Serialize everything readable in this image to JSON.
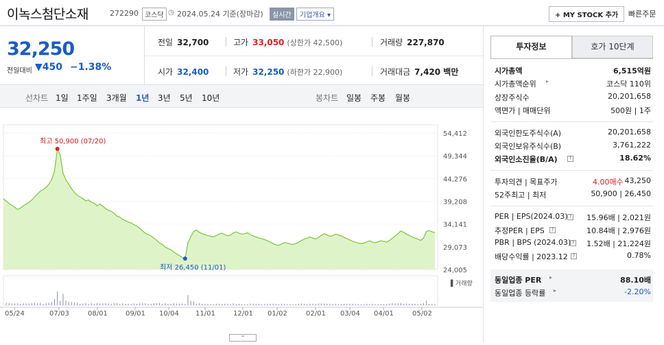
{
  "header": {
    "title": "이녹스첨단소재",
    "code": "272290",
    "market": "코스닥",
    "date": "2024.05.24 기준(장마감)",
    "realtime": "실시간",
    "corp_info": "기업개요 ▾",
    "my_stock": "+ MY STOCK 추가",
    "quick_order": "빠른주문"
  },
  "price": {
    "current": "32,250",
    "change_label": "전일대비",
    "change": "▼450",
    "change_pct": "−1.38%"
  },
  "quote": {
    "prev_label": "전일",
    "prev": "32,700",
    "high_label": "고가",
    "high": "33,050",
    "upper_limit": "(상한가 42,500)",
    "volume_label": "거래량",
    "volume": "227,870",
    "open_label": "시가",
    "open": "32,400",
    "low_label": "저가",
    "low": "32,250",
    "lower_limit": "(하한가 22,900)",
    "value_label": "거래대금",
    "value": "7,420 백만"
  },
  "tabs": {
    "line_chart": "선차트",
    "periods": [
      "1일",
      "1주일",
      "3개월",
      "1년",
      "3년",
      "5년",
      "10년"
    ],
    "selected_period": "1년",
    "candle_chart": "봉차트",
    "candle_periods": [
      "일봉",
      "주봉",
      "월봉"
    ]
  },
  "chart_data": {
    "type": "area",
    "y_ticks": [
      "54,412",
      "49,344",
      "44,276",
      "39,208",
      "34,141",
      "29,073",
      "24,005"
    ],
    "ylim": [
      24005,
      54412
    ],
    "x_ticks": [
      "05/24",
      "07/03",
      "08/01",
      "09/01",
      "10/04",
      "11/01",
      "12/01",
      "01/02",
      "02/01",
      "03/04",
      "04/01",
      "05/02"
    ],
    "high_annotation": "최고 50,900 (07/20)",
    "low_annotation": "최저 26,450 (11/01)",
    "volume_label": "거래량",
    "color_line": "#79c63c",
    "color_fill": "#dff3c9",
    "values": [
      39800,
      39200,
      38700,
      38300,
      37900,
      37400,
      37700,
      38200,
      38600,
      39000,
      39500,
      40200,
      40800,
      41500,
      41800,
      42300,
      43000,
      44000,
      46000,
      50900,
      49500,
      45500,
      44000,
      43000,
      42000,
      41200,
      40500,
      40200,
      39800,
      39300,
      39500,
      39000,
      38800,
      38200,
      38600,
      38100,
      37600,
      37200,
      37000,
      36500,
      35900,
      35700,
      35200,
      34900,
      34600,
      34400,
      34000,
      33700,
      33200,
      32600,
      32100,
      31800,
      31500,
      31000,
      30500,
      29900,
      29600,
      29000,
      28700,
      28400,
      27900,
      27500,
      27100,
      26700,
      26450,
      30000,
      31300,
      32500,
      32800,
      32300,
      32000,
      31800,
      31600,
      31400,
      31300,
      31600,
      31900,
      32100,
      31800,
      31500,
      31700,
      32200,
      32400,
      32100,
      31900,
      32000,
      32200,
      31800,
      31500,
      31300,
      31000,
      30900,
      30700,
      30400,
      30100,
      29800,
      29500,
      29400,
      29700,
      30000,
      29900,
      29700,
      29600,
      29800,
      30100,
      30500,
      30800,
      31000,
      31300,
      31000,
      30800,
      31200,
      31600,
      32000,
      31700,
      31400,
      31600,
      31900,
      31700,
      31500,
      31200,
      30900,
      30600,
      30300,
      30100,
      29900,
      29800,
      29900,
      30200,
      30400,
      30100,
      30000,
      30200,
      30400,
      30300,
      30100,
      30500,
      31000,
      31500,
      32000,
      32600,
      32300,
      31900,
      31600,
      31300,
      31000,
      30800,
      30500,
      31000,
      32500,
      32700,
      32400,
      32250
    ]
  },
  "side": {
    "tab_invest": "투자정보",
    "tab_hoga": "호가 10단계",
    "market_cap_label": "시가총액",
    "market_cap": "6,515억원",
    "rank_label": "시가총액순위",
    "rank": "코스닥 110위",
    "shares_label": "상장주식수",
    "shares": "20,201,658",
    "par_label": "액면가 | 매매단위",
    "par": "500원 | 1주",
    "foreign_limit_label": "외국인한도주식수(A)",
    "foreign_limit": "20,201,658",
    "foreign_hold_label": "외국인보유주식수(B)",
    "foreign_hold": "3,761,222",
    "foreign_rate_label": "외국인소진율(B/A)",
    "foreign_rate": "18.62%",
    "opinion_label": "투자의견 | 목표주가",
    "opinion": "4.00매수",
    "target": "43,250",
    "w52_label": "52주최고 | 최저",
    "w52": "50,900 | 26,450",
    "per_label": "PER | EPS(2024.03)",
    "per": "15.96배 | 2,021원",
    "est_per_label": "추정PER | EPS",
    "est_per": "10.84배 | 2,976원",
    "pbr_label": "PBR | BPS (2024.03)",
    "pbr": "1.52배 | 21,224원",
    "div_label": "배당수익률 | 2023.12",
    "div": "0.78%",
    "sector_per_label": "동일업종 PER",
    "sector_per": "88.10배",
    "sector_rate_label": "동일업종 등락률",
    "sector_rate": "-2.20%"
  }
}
